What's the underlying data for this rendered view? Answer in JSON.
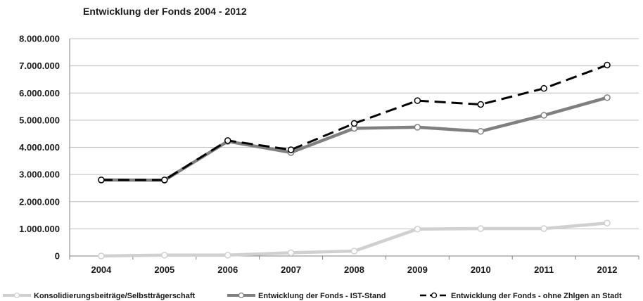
{
  "chart_data": {
    "type": "line",
    "title": "Entwicklung der Fonds 2004 - 2012",
    "xlabel": "",
    "ylabel": "",
    "x": [
      "2004",
      "2005",
      "2006",
      "2007",
      "2008",
      "2009",
      "2010",
      "2011",
      "2012"
    ],
    "ylim": [
      0,
      8000000
    ],
    "yticks": [
      "0",
      "1.000.000",
      "2.000.000",
      "3.000.000",
      "4.000.000",
      "5.000.000",
      "6.000.000",
      "7.000.000",
      "8.000.000"
    ],
    "grid": true,
    "legend_position": "bottom",
    "series": [
      {
        "name": "Konsolidierungsbeiträge/Selbstträgerschaft",
        "values": [
          0,
          30000,
          30000,
          120000,
          180000,
          990000,
          1010000,
          1010000,
          1210000
        ],
        "color": "#d0d0d0",
        "style": "solid"
      },
      {
        "name": "Entwicklung der Fonds - IST-Stand",
        "values": [
          2800000,
          2790000,
          4220000,
          3810000,
          4700000,
          4740000,
          4590000,
          5180000,
          5830000
        ],
        "color": "#808080",
        "style": "solid"
      },
      {
        "name": "Entwicklung der Fonds - ohne Zhlgen an Stadt",
        "values": [
          2800000,
          2800000,
          4250000,
          3910000,
          4880000,
          5720000,
          5580000,
          6170000,
          7030000
        ],
        "color": "#000000",
        "style": "dashed"
      }
    ]
  }
}
